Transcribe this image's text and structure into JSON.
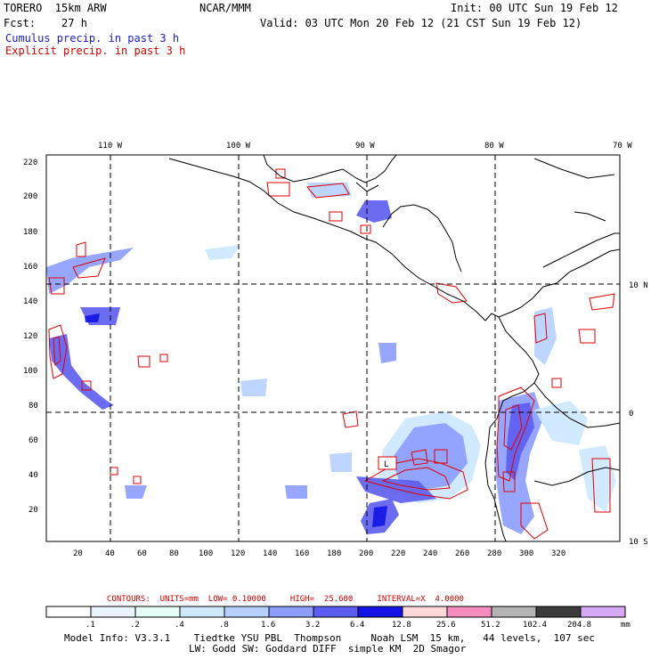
{
  "header": {
    "model": "TORERO  15km ARW",
    "org": "NCAR/MMM",
    "init": "Init: 00 UTC Sun 19 Feb 12",
    "fcst": "Fcst:    27 h",
    "valid": "Valid: 03 UTC Mon 20 Feb 12 (21 CST Sun 19 Feb 12)",
    "field1": "Cumulus precip. in past 3 h",
    "field2": "Explicit precip. in past 3 h"
  },
  "map": {
    "lon_labels": [
      "110 W",
      "100 W",
      "90 W",
      "80 W",
      "70 W"
    ],
    "lat_labels": [
      "10 N",
      "0",
      "10 S"
    ],
    "y_ticks": [
      "220",
      "200",
      "180",
      "160",
      "140",
      "120",
      "100",
      "80",
      "60",
      "40",
      "20"
    ],
    "x_ticks": [
      "20",
      "40",
      "60",
      "80",
      "100",
      "120",
      "140",
      "160",
      "180",
      "200",
      "220",
      "240",
      "260",
      "280",
      "300",
      "320"
    ],
    "box_label": "L",
    "colors": {
      "coast": "#000000",
      "grid": "#000000",
      "explicit": "#e00000",
      "cumulus": "#2b2bd6"
    }
  },
  "contours": {
    "title": "CONTOURS:  UNITS=mm  LOW= 0.10000     HIGH=  25.600     INTERVAL=X  4.0000"
  },
  "colorbar": {
    "labels": [
      ".1",
      ".2",
      ".4",
      ".8",
      "1.6",
      "3.2",
      "6.4",
      "12.8",
      "25.6",
      "51.2",
      "102.4",
      "204.8"
    ],
    "unit": "mm",
    "colors": [
      "#ffffff",
      "#eaf3ff",
      "#e6fff6",
      "#cde8ff",
      "#b6d0ff",
      "#8c9cff",
      "#5c5cf0",
      "#1414e6",
      "#ffd8d8",
      "#f48cc0",
      "#b4b4b4",
      "#3c3c3c",
      "#d7a8f5"
    ]
  },
  "footer": {
    "line1": "Model Info: V3.3.1    Tiedtke YSU PBL  Thompson     Noah LSM  15 km,   44 levels,  107 sec",
    "line2": "LW: Godd SW: Goddard DIFF  simple KM  2D Smagor"
  }
}
